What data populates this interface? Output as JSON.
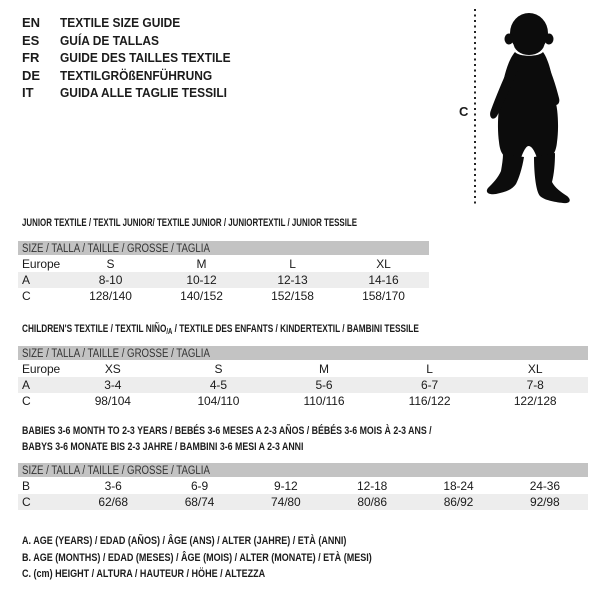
{
  "colors": {
    "header_bar_bg": "#c3c3c3",
    "stripe_bg": "#ededed",
    "text": "#1b1b1b",
    "silhouette": "#0c0c0c"
  },
  "language_header": {
    "items": [
      {
        "code": "EN",
        "title": "TEXTILE SIZE GUIDE"
      },
      {
        "code": "ES",
        "title": "GUÍA DE TALLAS"
      },
      {
        "code": "FR",
        "title": "GUIDE DES TAILLES TEXTILE"
      },
      {
        "code": "DE",
        "title": "TEXTILGRÖßENFÜHRUNG"
      },
      {
        "code": "IT",
        "title": "GUIDA ALLE TAGLIE TESSILI"
      }
    ]
  },
  "figure": {
    "icon": "toddler-silhouette",
    "marker_label": "C"
  },
  "junior_table": {
    "title": "JUNIOR TEXTILE / TEXTIL JUNIOR/ TEXTILE JUNIOR / JUNIORTEXTIL / JUNIOR TESSILE",
    "size_header": "SIZE / TALLA / TAILLE / GRÖSSE / TAGLIA",
    "rows": [
      {
        "shaded": false,
        "cells": [
          "Europe",
          "S",
          "M",
          "L",
          "XL"
        ]
      },
      {
        "shaded": true,
        "cells": [
          "A",
          "8-10",
          "10-12",
          "12-13",
          "14-16"
        ]
      },
      {
        "shaded": false,
        "cells": [
          "C",
          "128/140",
          "140/152",
          "152/158",
          "158/170"
        ]
      }
    ]
  },
  "children_table": {
    "title_before": "CHILDREN'S TEXTILE / TEXTIL NIÑO",
    "title_sub": "/A",
    "title_after": " / TEXTILE DES ENFANTS / KINDERTEXTIL / BAMBINI TESSILE",
    "size_header": "SIZE / TALLA / TAILLE / GRÖSSE / TAGLIA",
    "rows": [
      {
        "shaded": false,
        "cells": [
          "Europe",
          "XS",
          "S",
          "M",
          "L",
          "XL"
        ]
      },
      {
        "shaded": true,
        "cells": [
          "A",
          "3-4",
          "4-5",
          "5-6",
          "6-7",
          "7-8"
        ]
      },
      {
        "shaded": false,
        "cells": [
          "C",
          "98/104",
          "104/110",
          "110/116",
          "116/122",
          "122/128"
        ]
      }
    ]
  },
  "babies_table": {
    "title_line1": "BABIES 3-6 MONTH TO 2-3 YEARS / BEBÉS 3-6 MESES A 2-3 AÑOS / BÉBÉS 3-6 MOIS À 2-3 ANS /",
    "title_line2": "BABYS 3-6 MONATE BIS 2-3 JAHRE / BAMBINI 3-6 MESI A 2-3 ANNI",
    "size_header": "SIZE / TALLA / TAILLE / GRÖSSE / TAGLIA",
    "rows": [
      {
        "shaded": false,
        "cells": [
          "B",
          "3-6",
          "6-9",
          "9-12",
          "12-18",
          "18-24",
          "24-36"
        ]
      },
      {
        "shaded": true,
        "cells": [
          "C",
          "62/68",
          "68/74",
          "74/80",
          "80/86",
          "86/92",
          "92/98"
        ]
      }
    ]
  },
  "footnotes": [
    "A. AGE (YEARS) / EDAD (AÑOS) / ÂGE (ANS) / ALTER (JAHRE) / ETÀ (ANNI)",
    "B. AGE (MONTHS) / EDAD (MESES) / ÂGE (MOIS) / ALTER (MONATE) / ETÀ (MESI)",
    "C. (cm) HEIGHT / ALTURA / HAUTEUR / HÖHE / ALTEZZA"
  ]
}
